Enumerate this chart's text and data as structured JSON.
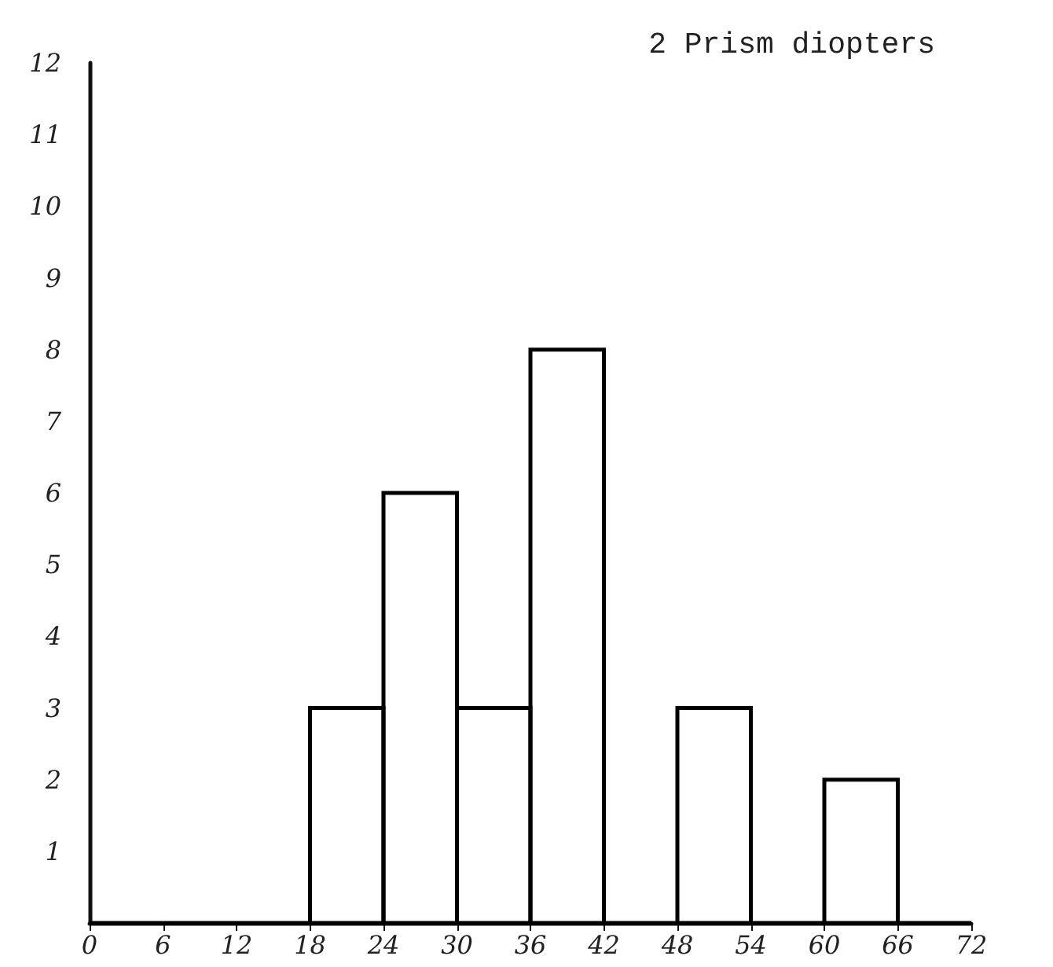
{
  "chart_data": {
    "type": "histogram",
    "title": "2 Prism diopters",
    "bins": [
      0,
      6,
      12,
      18,
      24,
      30,
      36,
      42,
      48,
      54,
      60,
      66,
      72
    ],
    "values": [
      0,
      0,
      0,
      3,
      6,
      3,
      8,
      0,
      3,
      0,
      2,
      0
    ],
    "color": "#000000",
    "xlim": [
      0,
      72
    ],
    "xticks": [
      0,
      6,
      12,
      18,
      24,
      30,
      36,
      42,
      48,
      54,
      60,
      66,
      72
    ],
    "ylim": [
      0,
      12
    ],
    "yticks": [
      1,
      2,
      3,
      4,
      5,
      6,
      7,
      8,
      9,
      10,
      11,
      12
    ],
    "grid": false
  }
}
